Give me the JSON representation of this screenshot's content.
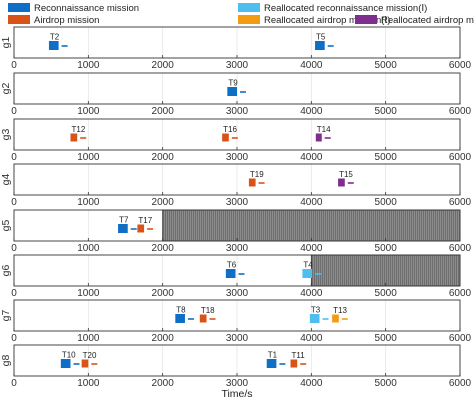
{
  "chart_data": {
    "type": "gantt",
    "xlabel": "Time/s",
    "xlim": [
      0,
      6000
    ],
    "xticks": [
      0,
      1000,
      2000,
      3000,
      4000,
      5000,
      6000
    ],
    "grid": true,
    "legend": {
      "placement": "top",
      "entries": [
        {
          "key": "recon",
          "label": "Reconnaissance mission",
          "color": "#0F6FC6"
        },
        {
          "key": "realloc_recon",
          "label": "Reallocated reconnaissance mission(Ⅰ)",
          "color": "#4DBEEE"
        },
        {
          "key": "airdrop",
          "label": "Airdrop mission",
          "color": "#D95319"
        },
        {
          "key": "realloc_air1",
          "label": "Reallocated airdrop mission(Ⅰ)",
          "color": "#F39C12"
        },
        {
          "key": "realloc_air2",
          "label": "Reallocated airdrop mission(Ⅱ)",
          "color": "#7E2F8E"
        }
      ]
    },
    "rows": [
      {
        "name": "g1",
        "tasks": [
          {
            "label": "T2",
            "type": "recon",
            "start": 470,
            "end": 600
          },
          {
            "label": "T5",
            "type": "recon",
            "start": 4050,
            "end": 4180
          }
        ]
      },
      {
        "name": "g2",
        "tasks": [
          {
            "label": "T9",
            "type": "recon",
            "start": 2870,
            "end": 3000
          }
        ]
      },
      {
        "name": "g3",
        "tasks": [
          {
            "label": "T12",
            "type": "airdrop",
            "start": 760,
            "end": 850
          },
          {
            "label": "T16",
            "type": "airdrop",
            "start": 2800,
            "end": 2890
          },
          {
            "label": "T14",
            "type": "realloc_air2",
            "start": 4060,
            "end": 4140
          }
        ]
      },
      {
        "name": "g4",
        "tasks": [
          {
            "label": "T19",
            "type": "airdrop",
            "start": 3160,
            "end": 3250
          },
          {
            "label": "T15",
            "type": "realloc_air2",
            "start": 4360,
            "end": 4450
          }
        ]
      },
      {
        "name": "g5",
        "tasks": [
          {
            "label": "T7",
            "type": "recon",
            "start": 1400,
            "end": 1530
          },
          {
            "label": "T17",
            "type": "airdrop",
            "start": 1660,
            "end": 1750
          }
        ],
        "unavailable": [
          2000,
          6000
        ]
      },
      {
        "name": "g6",
        "tasks": [
          {
            "label": "T6",
            "type": "recon",
            "start": 2850,
            "end": 2980
          },
          {
            "label": "T4",
            "type": "realloc_recon",
            "start": 3880,
            "end": 4010
          }
        ],
        "unavailable": [
          4000,
          6000
        ]
      },
      {
        "name": "g7",
        "tasks": [
          {
            "label": "T8",
            "type": "recon",
            "start": 2170,
            "end": 2300
          },
          {
            "label": "T18",
            "type": "airdrop",
            "start": 2500,
            "end": 2590
          },
          {
            "label": "T3",
            "type": "realloc_recon",
            "start": 3980,
            "end": 4110
          },
          {
            "label": "T13",
            "type": "realloc_air1",
            "start": 4280,
            "end": 4370
          }
        ]
      },
      {
        "name": "g8",
        "tasks": [
          {
            "label": "T10",
            "type": "recon",
            "start": 630,
            "end": 760
          },
          {
            "label": "T20",
            "type": "airdrop",
            "start": 910,
            "end": 1000
          },
          {
            "label": "T1",
            "type": "recon",
            "start": 3400,
            "end": 3530
          },
          {
            "label": "T11",
            "type": "airdrop",
            "start": 3720,
            "end": 3810
          }
        ]
      }
    ]
  },
  "colors": {
    "unavailable_fill": "#8C8C8C",
    "axis": "#333333",
    "grid": "#E6E6E6"
  }
}
